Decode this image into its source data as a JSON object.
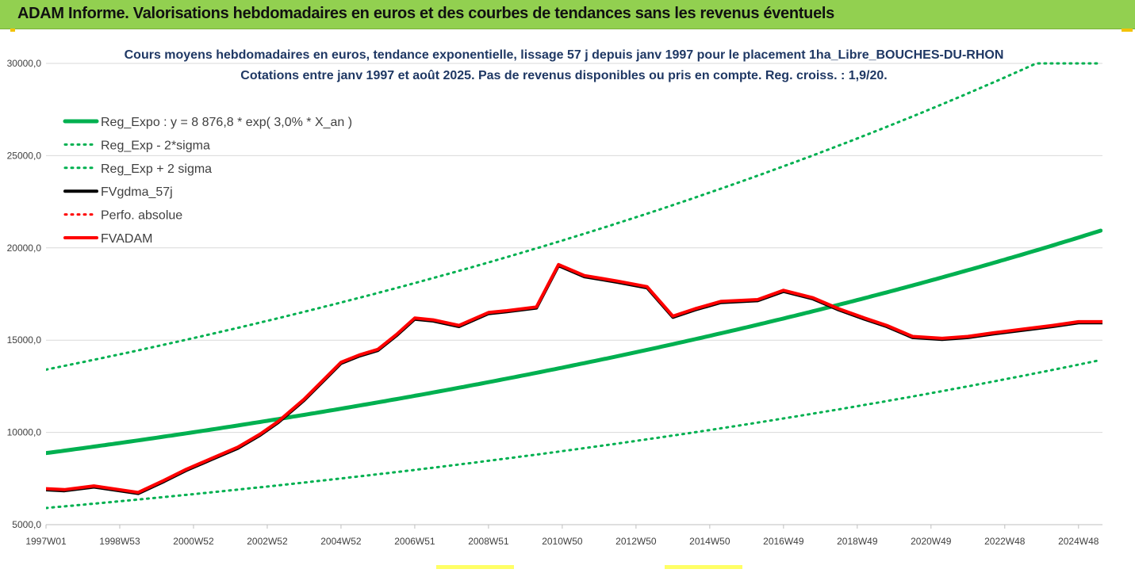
{
  "banner": {
    "title": "ADAM Informe. Valorisations hebdomadaires en euros et des courbes de tendances sans les revenus éventuels",
    "color": "#92d050"
  },
  "chart_data": {
    "type": "line",
    "title": [
      "Cours moyens hebdomadaires en euros, tendance exponentielle, lissage 57 j depuis janv 1997 pour le placement 1ha_Libre_BOUCHES-DU-RHON",
      "Cotations entre janv 1997 et août 2025.  Pas de revenus disponibles ou pris en compte. Reg. croiss. : 1,9/20."
    ],
    "xlabel": "",
    "ylabel": "",
    "ylim": [
      5000,
      30000
    ],
    "xlim": [
      1997.0,
      2025.65
    ],
    "y_ticks": [
      "5000,0",
      "10000,0",
      "15000,0",
      "20000,0",
      "25000,0",
      "30000,0"
    ],
    "y_tick_values": [
      5000,
      10000,
      15000,
      20000,
      25000,
      30000
    ],
    "x_ticks": [
      "1997W01",
      "1998W53",
      "2000W52",
      "2002W52",
      "2004W52",
      "2006W51",
      "2008W51",
      "2010W50",
      "2012W50",
      "2014W50",
      "2016W49",
      "2018W49",
      "2020W49",
      "2022W48",
      "2024W48"
    ],
    "x_tick_values": [
      1997.0,
      1999.0,
      2001.0,
      2003.0,
      2005.0,
      2007.0,
      2009.0,
      2011.0,
      2013.0,
      2015.0,
      2017.0,
      2019.0,
      2021.0,
      2023.0,
      2025.0
    ],
    "grid": "horizontal",
    "legend_position": "top-left",
    "series": [
      {
        "name": "Reg_Expo : y = 8 876,8 * exp( 3,0% *  X_an )",
        "color": "#00b050",
        "style": "solid",
        "width": 5,
        "formula": {
          "a": 8876.8,
          "b": 0.03,
          "x0": 1997.0,
          "factor": 1.0
        }
      },
      {
        "name": "Reg_Exp - 2*sigma",
        "color": "#00b050",
        "style": "dotted",
        "width": 3,
        "formula": {
          "a": 8876.8,
          "b": 0.03,
          "x0": 1997.0,
          "factor": 0.665
        }
      },
      {
        "name": "Reg_Exp + 2 sigma",
        "color": "#00b050",
        "style": "dotted",
        "width": 3,
        "formula": {
          "a": 8876.8,
          "b": 0.03,
          "x0": 1997.0,
          "factor": 1.51,
          "cap": 30000
        }
      },
      {
        "name": "FVgdma_57j",
        "color": "#000000",
        "style": "solid",
        "width": 4,
        "follows": "FVADAM",
        "offset": -60
      },
      {
        "name": "Perfo. absolue",
        "color": "#ff0000",
        "style": "dotted",
        "width": 3,
        "hidden_in_plot": true
      },
      {
        "name": "FVADAM",
        "color": "#ff0000",
        "style": "solid",
        "width": 4,
        "x": [
          1997.0,
          1997.5,
          1998.3,
          1999.5,
          2000.2,
          2000.8,
          2001.5,
          2002.2,
          2002.8,
          2003.3,
          2004.0,
          2004.6,
          2005.0,
          2005.5,
          2006.0,
          2006.5,
          2007.0,
          2007.5,
          2008.2,
          2009.0,
          2009.5,
          2010.3,
          2010.9,
          2011.6,
          2012.5,
          2013.3,
          2014.0,
          2014.6,
          2015.3,
          2016.3,
          2017.0,
          2017.8,
          2018.5,
          2019.2,
          2019.8,
          2020.5,
          2021.3,
          2022.0,
          2022.7,
          2023.5,
          2024.3,
          2025.0,
          2025.65
        ],
        "y": [
          6950,
          6900,
          7100,
          6750,
          7400,
          8000,
          8600,
          9200,
          9900,
          10600,
          11800,
          13000,
          13800,
          14200,
          14500,
          15300,
          16200,
          16100,
          15800,
          16500,
          16600,
          16800,
          19100,
          18500,
          18200,
          17900,
          16300,
          16700,
          17100,
          17200,
          17700,
          17300,
          16700,
          16200,
          15800,
          15200,
          15100,
          15200,
          15400,
          15600,
          15800,
          16000,
          16000
        ]
      }
    ]
  }
}
